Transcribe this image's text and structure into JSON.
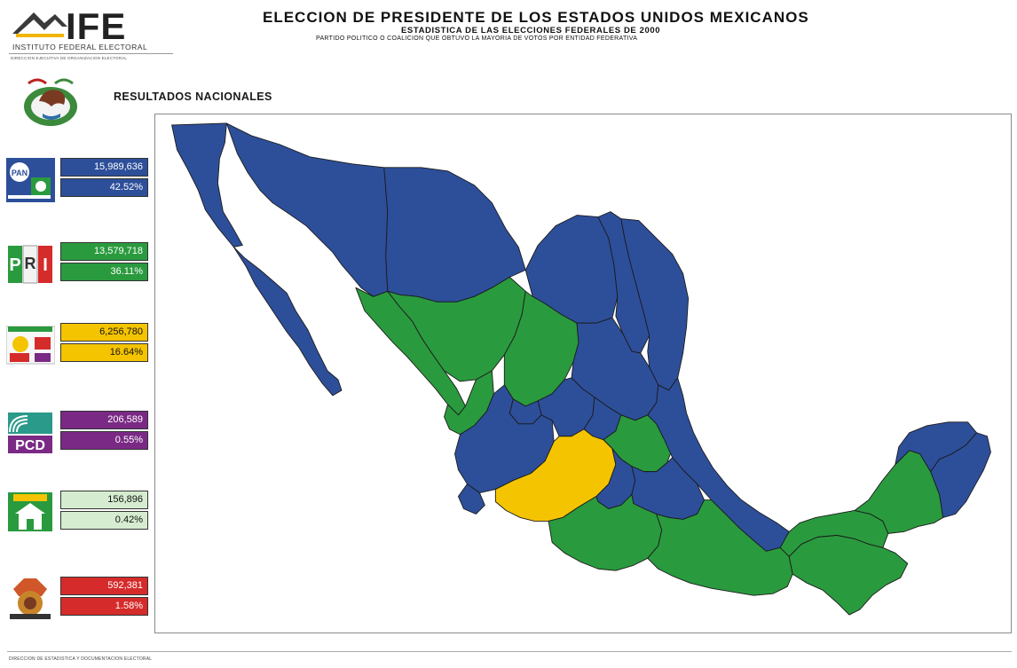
{
  "header": {
    "logo_text": "IFE",
    "logo_subtitle": "INSTITUTO FEDERAL ELECTORAL",
    "direction_top": "DIRECCION EJECUTIVA DE ORGANIZACION ELECTORAL",
    "title": "ELECCION DE PRESIDENTE DE LOS ESTADOS UNIDOS MEXICANOS",
    "subtitle": "ESTADISTICA DE LAS ELECCIONES FEDERALES DE 2000",
    "subtitle2": "PARTIDO POLITICO O COALICION QUE OBTUVO LA MAYORIA DE VOTOS POR ENTIDAD FEDERATIVA"
  },
  "national_results_label": "RESULTADOS NACIONALES",
  "parties": [
    {
      "emblem": "pan-alianza-cambio-icon",
      "votes": "15,989,636",
      "percent": "42.52%",
      "color": "#2d4f9a",
      "text_color": "#ffffff"
    },
    {
      "emblem": "pri-icon",
      "votes": "13,579,718",
      "percent": "36.11%",
      "color": "#2a9a3e",
      "text_color": "#ffffff"
    },
    {
      "emblem": "alianza-por-mexico-icon",
      "votes": "6,256,780",
      "percent": "16.64%",
      "color": "#f5c400",
      "text_color": "#111111"
    },
    {
      "emblem": "pcd-icon",
      "votes": "206,589",
      "percent": "0.55%",
      "color": "#7a2a85",
      "text_color": "#ffffff"
    },
    {
      "emblem": "parm-icon",
      "votes": "156,896",
      "percent": "0.42%",
      "color": "#d6ecd0",
      "text_color": "#111111"
    },
    {
      "emblem": "dsppn-icon",
      "votes": "592,381",
      "percent": "1.58%",
      "color": "#d62b2b",
      "text_color": "#ffffff"
    }
  ],
  "map_colors": {
    "pan": "#2d4f9a",
    "pri": "#2a9a3e",
    "prd_alliance": "#f5c400"
  },
  "state_winners": [
    {
      "region": "baja-california",
      "winner": "pan"
    },
    {
      "region": "baja-california-sur",
      "winner": "pan"
    },
    {
      "region": "sonora",
      "winner": "pan"
    },
    {
      "region": "chihuahua",
      "winner": "pan"
    },
    {
      "region": "coahuila",
      "winner": "pan"
    },
    {
      "region": "nuevo-leon",
      "winner": "pan"
    },
    {
      "region": "tamaulipas",
      "winner": "pan"
    },
    {
      "region": "sinaloa",
      "winner": "pri"
    },
    {
      "region": "durango",
      "winner": "pri"
    },
    {
      "region": "zacatecas",
      "winner": "pri"
    },
    {
      "region": "nayarit",
      "winner": "pri"
    },
    {
      "region": "san-luis-potosi",
      "winner": "pan"
    },
    {
      "region": "aguascalientes",
      "winner": "pan"
    },
    {
      "region": "jalisco",
      "winner": "pan"
    },
    {
      "region": "colima",
      "winner": "pan"
    },
    {
      "region": "guanajuato",
      "winner": "pan"
    },
    {
      "region": "queretaro",
      "winner": "pan"
    },
    {
      "region": "hidalgo",
      "winner": "pri"
    },
    {
      "region": "michoacan",
      "winner": "prd_alliance"
    },
    {
      "region": "mexico",
      "winner": "pan"
    },
    {
      "region": "veracruz",
      "winner": "pan"
    },
    {
      "region": "puebla",
      "winner": "pan"
    },
    {
      "region": "guerrero",
      "winner": "pri"
    },
    {
      "region": "oaxaca",
      "winner": "pri"
    },
    {
      "region": "chiapas",
      "winner": "pri"
    },
    {
      "region": "tabasco",
      "winner": "pri"
    },
    {
      "region": "campeche",
      "winner": "pri"
    },
    {
      "region": "yucatan",
      "winner": "pan"
    },
    {
      "region": "quintana-roo",
      "winner": "pan"
    }
  ],
  "footer": {
    "text": "DIRECCION DE ESTADISTICA Y DOCUMENTACION ELECTORAL"
  }
}
